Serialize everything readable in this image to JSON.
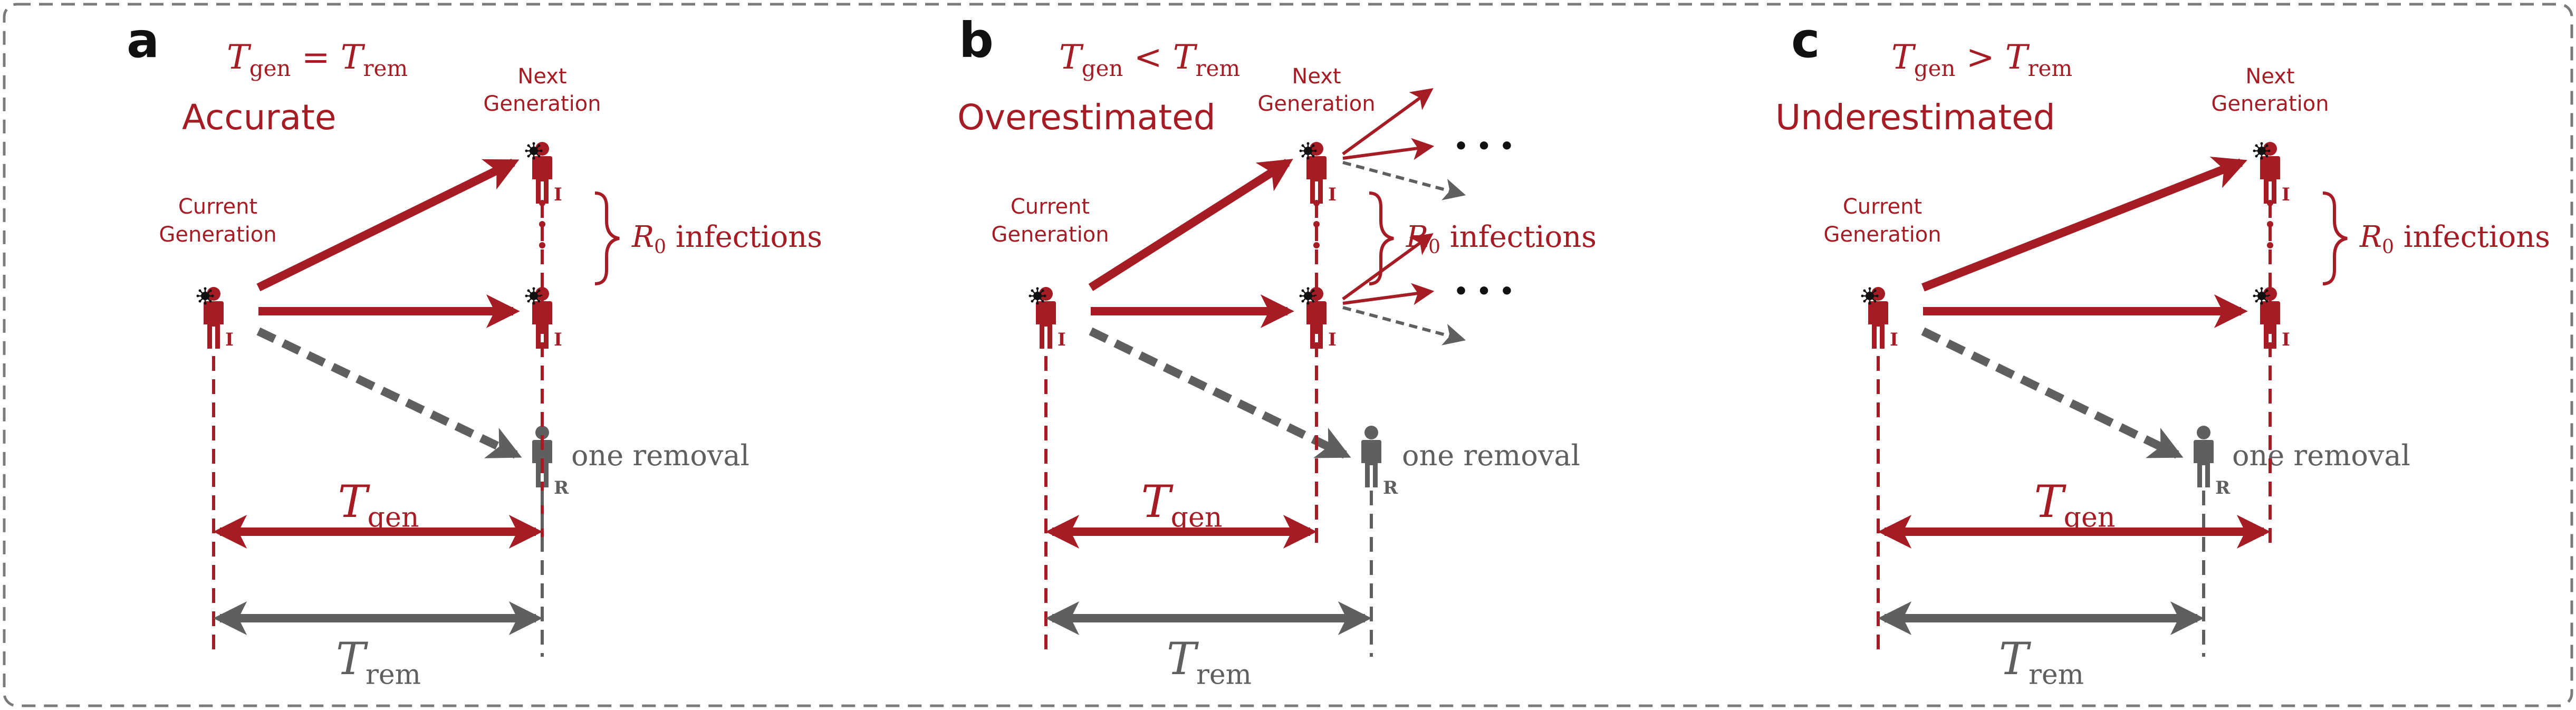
{
  "colors": {
    "red": "#a51c24",
    "gray": "#5f5f5f",
    "black": "#111111",
    "border": "#7a7a7a"
  },
  "icons": {
    "person_infected": "person-virus-icon",
    "person_removed": "person-icon"
  },
  "panels": [
    {
      "letter": "a",
      "condition": {
        "lhs": "T",
        "lhs_sub": "gen",
        "op": "=",
        "rhs": "T",
        "rhs_sub": "rem"
      },
      "verdict": "Accurate",
      "current_label": [
        "Current",
        "Generation"
      ],
      "next_label": [
        "Next",
        "Generation"
      ],
      "infected_tag": "I",
      "removed_tag": "R",
      "r0_label": "infections",
      "r0_symbol": "R",
      "r0_sub": "0",
      "removal_label": "one removal",
      "tgen": {
        "sym": "T",
        "sub": "gen"
      },
      "trem": {
        "sym": "T",
        "sub": "rem"
      }
    },
    {
      "letter": "b",
      "condition": {
        "lhs": "T",
        "lhs_sub": "gen",
        "op": "<",
        "rhs": "T",
        "rhs_sub": "rem"
      },
      "verdict": "Overestimated",
      "current_label": [
        "Current",
        "Generation"
      ],
      "next_label": [
        "Next",
        "Generation"
      ],
      "infected_tag": "I",
      "removed_tag": "R",
      "r0_label": "infections",
      "r0_symbol": "R",
      "r0_sub": "0",
      "removal_label": "one removal",
      "ellipsis": "• • •",
      "tgen": {
        "sym": "T",
        "sub": "gen"
      },
      "trem": {
        "sym": "T",
        "sub": "rem"
      }
    },
    {
      "letter": "c",
      "condition": {
        "lhs": "T",
        "lhs_sub": "gen",
        "op": ">",
        "rhs": "T",
        "rhs_sub": "rem"
      },
      "verdict": "Underestimated",
      "current_label": [
        "Current",
        "Generation"
      ],
      "next_label": [
        "Next",
        "Generation"
      ],
      "infected_tag": "I",
      "removed_tag": "R",
      "r0_label": "infections",
      "r0_symbol": "R",
      "r0_sub": "0",
      "removal_label": "one removal",
      "tgen": {
        "sym": "T",
        "sub": "gen"
      },
      "trem": {
        "sym": "T",
        "sub": "rem"
      }
    }
  ]
}
